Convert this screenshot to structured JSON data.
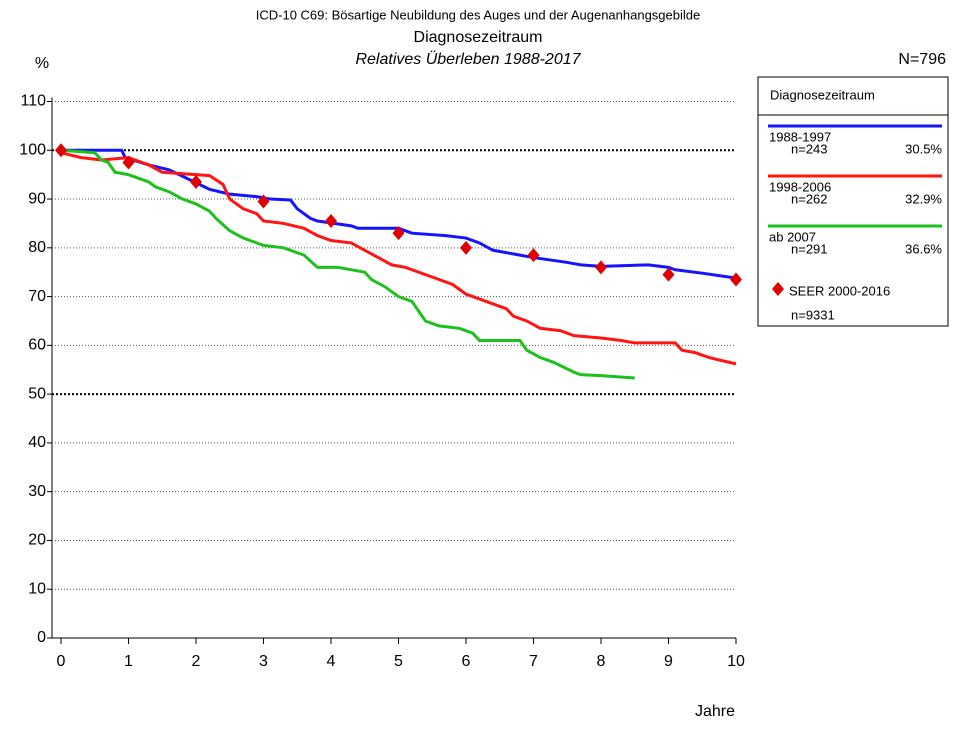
{
  "chart_data": {
    "type": "line",
    "title": "ICD-10 C69: Bösartige Neubildung des Auges und der Augenanhangsgebilde",
    "subtitle": "Diagnosezeitraum",
    "subtitle2": "Relatives Überleben 1988-2017",
    "y_label": "%",
    "x_label": "Jahre",
    "total_label": "N=796",
    "legend_title": "Diagnosezeitraum",
    "xlim": [
      0,
      10
    ],
    "xticks": [
      0,
      1,
      2,
      3,
      4,
      5,
      6,
      7,
      8,
      9,
      10
    ],
    "ylim": [
      0,
      110
    ],
    "yticks": [
      0,
      10,
      20,
      30,
      40,
      50,
      60,
      70,
      80,
      90,
      100,
      110
    ],
    "grid": true,
    "series": [
      {
        "name": "1988-1997",
        "n_label": "n=243",
        "share_label": "30.5%",
        "color": "#1414ff",
        "x": [
          0,
          0.9,
          0.95,
          1.3,
          1.6,
          1.9,
          2.2,
          2.5,
          2.9,
          3.1,
          3.4,
          3.5,
          3.7,
          3.8,
          4.3,
          4.4,
          5.0,
          5.2,
          5.7,
          6.0,
          6.2,
          6.4,
          6.8,
          7.0,
          7.5,
          7.7,
          8.0,
          8.7,
          9.0,
          9.1,
          9.5,
          9.8,
          10
        ],
        "values": [
          100,
          100,
          98.5,
          97,
          96,
          94,
          92,
          91,
          90.5,
          90,
          89.8,
          88,
          86,
          85.5,
          84.5,
          84,
          84,
          83,
          82.5,
          82,
          81,
          79.5,
          78.5,
          78,
          77,
          76.5,
          76.2,
          76.5,
          76,
          75.5,
          74.8,
          74.2,
          73.8
        ]
      },
      {
        "name": "1998-2006",
        "n_label": "n=262",
        "share_label": "32.9%",
        "color": "#ff1414",
        "x": [
          0,
          0.3,
          0.6,
          1.0,
          1.3,
          1.5,
          2.2,
          2.4,
          2.5,
          2.7,
          2.9,
          3.0,
          3.3,
          3.6,
          3.8,
          4.0,
          4.3,
          4.5,
          4.7,
          4.9,
          5.1,
          5.4,
          5.8,
          6.0,
          6.3,
          6.6,
          6.7,
          6.9,
          7.1,
          7.4,
          7.6,
          8.0,
          8.3,
          8.5,
          9.1,
          9.2,
          9.4,
          9.6,
          10
        ],
        "values": [
          99.5,
          98.5,
          98,
          98.5,
          97,
          95.5,
          94.8,
          93,
          90,
          88,
          87,
          85.5,
          85,
          84,
          82.5,
          81.5,
          81,
          79.5,
          78,
          76.5,
          76,
          74.5,
          72.5,
          70.5,
          69,
          67.5,
          66,
          65,
          63.5,
          63,
          62,
          61.5,
          61,
          60.5,
          60.5,
          59,
          58.5,
          57.5,
          56.2
        ]
      },
      {
        "name": "ab 2007",
        "n_label": "n=291",
        "share_label": "36.6%",
        "color": "#1ec01e",
        "x": [
          0,
          0.5,
          0.6,
          0.7,
          0.8,
          1.0,
          1.1,
          1.3,
          1.4,
          1.6,
          1.8,
          2.0,
          2.2,
          2.3,
          2.5,
          2.7,
          3.0,
          3.3,
          3.6,
          3.8,
          4.1,
          4.5,
          4.6,
          4.8,
          5.0,
          5.2,
          5.3,
          5.4,
          5.6,
          5.9,
          6.1,
          6.2,
          6.8,
          6.9,
          7.1,
          7.3,
          7.6,
          7.7,
          8.0,
          8.5
        ],
        "values": [
          100,
          99.5,
          98,
          97.5,
          95.5,
          95,
          94.5,
          93.5,
          92.5,
          91.5,
          90,
          89,
          87.5,
          86,
          83.5,
          82,
          80.5,
          80,
          78.5,
          76,
          76,
          75,
          73.5,
          72,
          70,
          69,
          67,
          65,
          64,
          63.5,
          62.5,
          61,
          61,
          59,
          57.5,
          56.5,
          54.5,
          54,
          53.8,
          53.3
        ]
      }
    ],
    "reference": {
      "name": "SEER 2000-2016",
      "n_label": "n=9331",
      "color": "#e00000",
      "x": [
        0,
        1,
        2,
        3,
        4,
        5,
        6,
        7,
        8,
        9,
        10
      ],
      "values": [
        100,
        97.5,
        93.5,
        89.5,
        85.5,
        83,
        80,
        78.5,
        76,
        74.5,
        73.5
      ]
    }
  }
}
